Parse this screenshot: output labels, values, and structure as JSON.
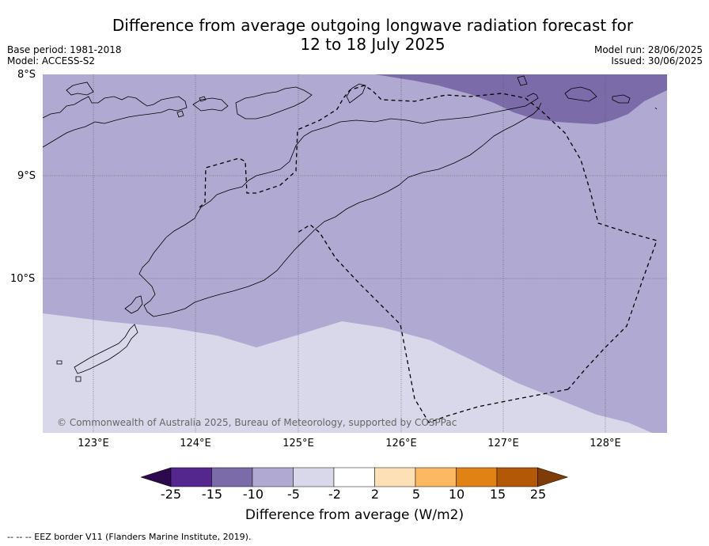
{
  "title_line1": "Difference from average outgoing longwave radiation forecast for",
  "title_line2": "12 to 18 July 2025",
  "base_period": "Base period: 1981-2018",
  "model": "Model: ACCESS-S2",
  "model_run": "Model run: 28/06/2025",
  "issued": "Issued: 30/06/2025",
  "lat_labels": [
    "8°S",
    "9°S",
    "10°S"
  ],
  "lon_labels": [
    "123°E",
    "124°E",
    "125°E",
    "126°E",
    "127°E",
    "128°E"
  ],
  "copyright": "© Commonwealth of Australia 2025, Bureau of Meteorology, supported by COSPPac",
  "colorbar": {
    "ticks": [
      "-25",
      "-15",
      "-10",
      "-5",
      "-2",
      "2",
      "5",
      "10",
      "15",
      "25"
    ],
    "colors": [
      "#2d0a4e",
      "#54278f",
      "#7b6ca9",
      "#b0a9d1",
      "#d8d8ea",
      "#ffffff",
      "#fee0b6",
      "#fdb863",
      "#e08214",
      "#b35806",
      "#7f3b08"
    ],
    "label": "Difference from average (W/m2)"
  },
  "footnote": "--  --  -- EEZ border V11 (Flanders Marine Institute, 2019)."
}
